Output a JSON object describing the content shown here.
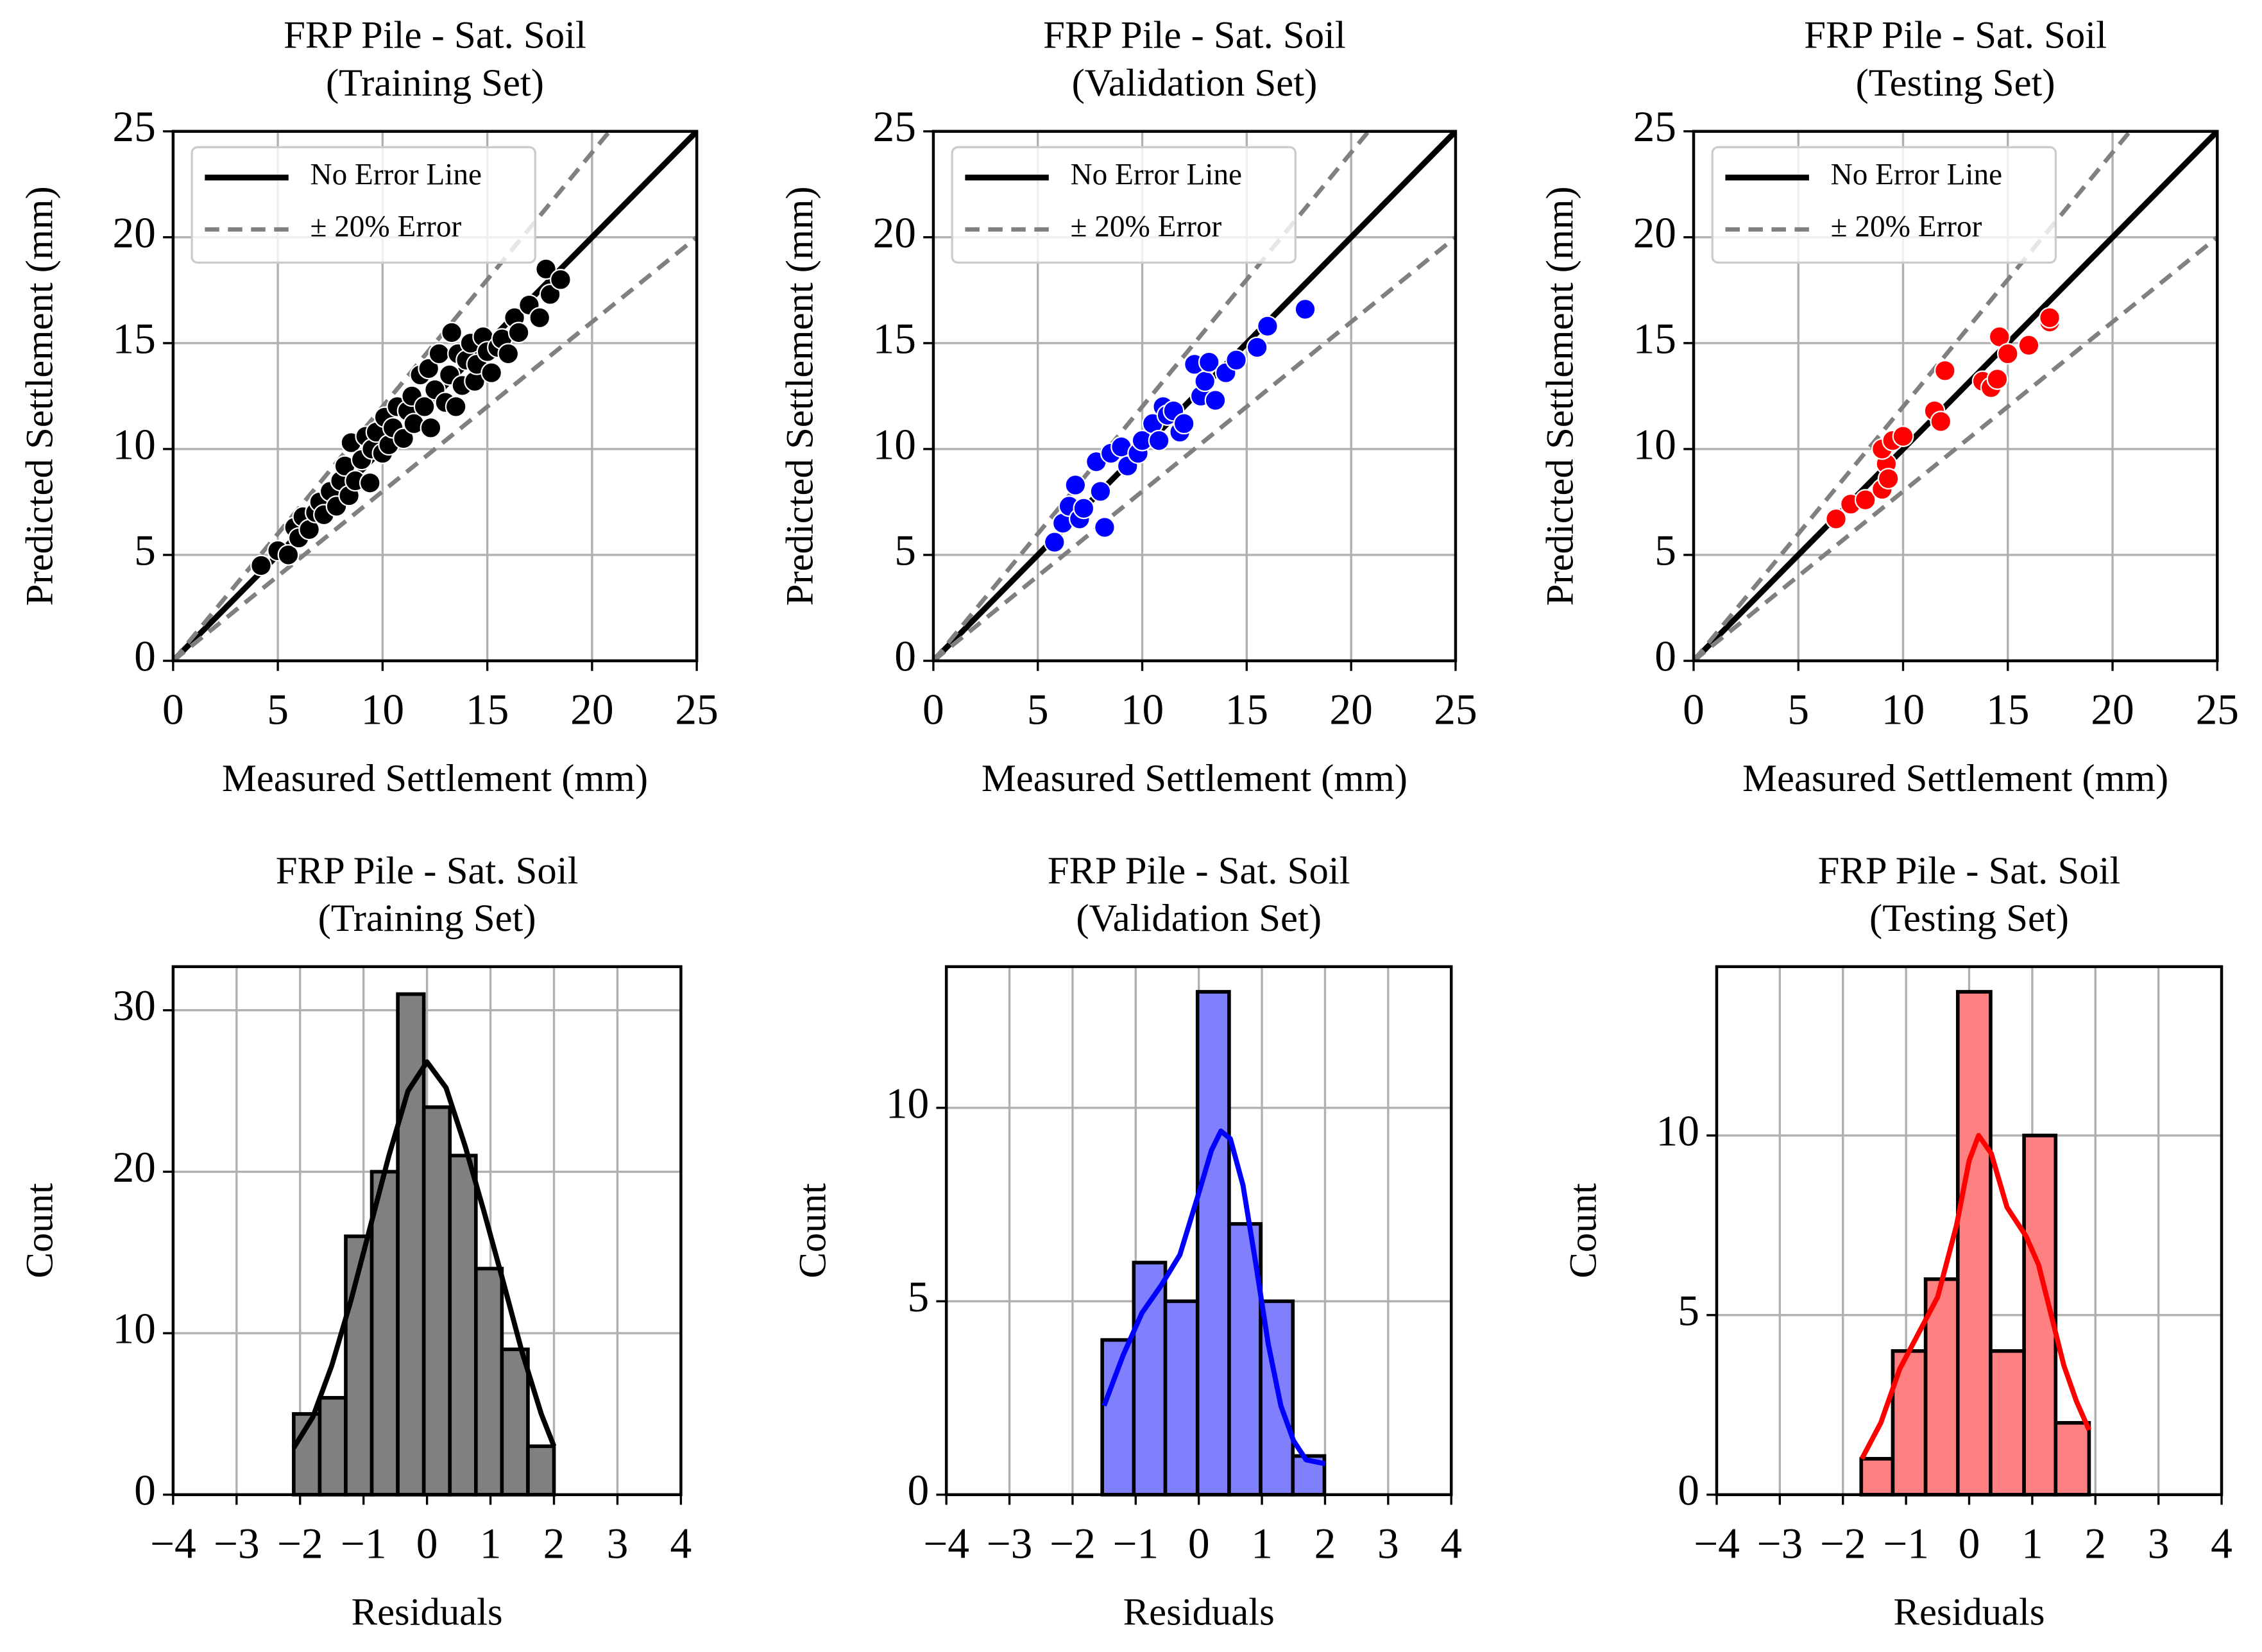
{
  "chart_data": [
    {
      "type": "scatter",
      "title": "FRP Pile - Sat. Soil",
      "subtitle": "(Training Set)",
      "xlabel": "Measured Settlement (mm)",
      "ylabel": "Predicted Settlement (mm)",
      "xlim": [
        0,
        25
      ],
      "ylim": [
        0,
        25
      ],
      "xticks": [
        0,
        5,
        10,
        15,
        20,
        25
      ],
      "yticks": [
        0,
        5,
        10,
        15,
        20,
        25
      ],
      "grid": true,
      "legend": "upper left",
      "color": "#000000",
      "x": [
        4.2,
        5.0,
        5.5,
        5.8,
        6.0,
        6.2,
        6.5,
        6.8,
        7.0,
        7.2,
        7.5,
        7.8,
        8.0,
        8.2,
        8.4,
        8.5,
        8.7,
        9.0,
        9.2,
        9.4,
        9.5,
        9.7,
        10.0,
        10.1,
        10.3,
        10.5,
        10.7,
        11.0,
        11.2,
        11.4,
        11.5,
        11.8,
        12.0,
        12.2,
        12.3,
        12.5,
        12.7,
        13.0,
        13.2,
        13.3,
        13.5,
        13.6,
        13.8,
        14.0,
        14.2,
        14.4,
        14.5,
        14.8,
        15.0,
        15.2,
        15.5,
        15.7,
        16.0,
        16.3,
        16.5,
        17.0,
        17.5,
        17.8,
        18.0,
        18.5
      ],
      "y": [
        4.5,
        5.2,
        5.0,
        6.3,
        5.8,
        6.8,
        6.2,
        7.0,
        7.5,
        6.9,
        8.0,
        7.3,
        8.5,
        9.2,
        7.8,
        10.3,
        8.5,
        9.5,
        10.6,
        8.4,
        10.0,
        10.8,
        9.8,
        11.5,
        10.2,
        11.0,
        12.0,
        10.5,
        11.8,
        12.5,
        11.2,
        13.5,
        12.0,
        13.8,
        11.0,
        12.8,
        14.5,
        12.2,
        13.5,
        15.5,
        12.0,
        14.5,
        13.0,
        14.2,
        15.0,
        13.2,
        14.0,
        15.3,
        14.6,
        13.6,
        14.8,
        15.2,
        14.5,
        16.2,
        15.5,
        16.8,
        16.2,
        18.5,
        17.3,
        18.0
      ],
      "reference_lines": [
        {
          "name": "No Error Line",
          "color": "#000000",
          "dashed": false,
          "slopes": [
            1
          ]
        },
        {
          "name": "± 20% Error",
          "color": "#808080",
          "dashed": true,
          "slopes": [
            1.2,
            0.8
          ]
        }
      ]
    },
    {
      "type": "scatter",
      "title": "FRP Pile - Sat. Soil",
      "subtitle": "(Validation Set)",
      "xlabel": "Measured Settlement (mm)",
      "ylabel": "Predicted Settlement (mm)",
      "xlim": [
        0,
        25
      ],
      "ylim": [
        0,
        25
      ],
      "xticks": [
        0,
        5,
        10,
        15,
        20,
        25
      ],
      "yticks": [
        0,
        5,
        10,
        15,
        20,
        25
      ],
      "grid": true,
      "legend": "upper left",
      "color": "#0000ff",
      "x": [
        5.8,
        6.2,
        6.5,
        6.8,
        7.0,
        7.2,
        7.8,
        8.0,
        8.2,
        8.5,
        9.0,
        9.3,
        9.8,
        10.0,
        10.5,
        10.8,
        11.0,
        11.2,
        11.5,
        11.8,
        12.0,
        12.5,
        12.8,
        13.0,
        13.2,
        13.5,
        14.0,
        14.5,
        15.5,
        16.0,
        17.8
      ],
      "y": [
        5.6,
        6.5,
        7.3,
        8.3,
        6.7,
        7.2,
        9.4,
        8.0,
        6.3,
        9.8,
        10.1,
        9.2,
        9.8,
        10.4,
        11.2,
        10.4,
        12.0,
        11.6,
        11.8,
        10.8,
        11.2,
        14.0,
        12.5,
        13.2,
        14.1,
        12.3,
        13.6,
        14.2,
        14.8,
        15.8,
        16.6
      ],
      "reference_lines": [
        {
          "name": "No Error Line",
          "color": "#000000",
          "dashed": false,
          "slopes": [
            1
          ]
        },
        {
          "name": "± 20% Error",
          "color": "#808080",
          "dashed": true,
          "slopes": [
            1.2,
            0.8
          ]
        }
      ]
    },
    {
      "type": "scatter",
      "title": "FRP Pile - Sat. Soil",
      "subtitle": "(Testing Set)",
      "xlabel": "Measured Settlement (mm)",
      "ylabel": "Predicted Settlement (mm)",
      "xlim": [
        0,
        25
      ],
      "ylim": [
        0,
        25
      ],
      "xticks": [
        0,
        5,
        10,
        15,
        20,
        25
      ],
      "yticks": [
        0,
        5,
        10,
        15,
        20,
        25
      ],
      "grid": true,
      "legend": "upper left",
      "color": "#ff0000",
      "x": [
        6.8,
        7.5,
        8.2,
        9.0,
        9.2,
        9.0,
        9.5,
        10.0,
        11.5,
        11.8,
        12.0,
        13.8,
        14.2,
        14.5,
        14.6,
        15.0,
        16.0,
        17.0,
        17.0,
        9.3
      ],
      "y": [
        6.7,
        7.4,
        7.6,
        8.1,
        9.3,
        10.0,
        10.4,
        10.6,
        11.8,
        11.3,
        13.7,
        13.2,
        12.9,
        13.3,
        15.3,
        14.5,
        14.9,
        16.0,
        16.2,
        8.6
      ],
      "reference_lines": [
        {
          "name": "No Error Line",
          "color": "#000000",
          "dashed": false,
          "slopes": [
            1
          ]
        },
        {
          "name": "± 20% Error",
          "color": "#808080",
          "dashed": true,
          "slopes": [
            1.2,
            0.8
          ]
        }
      ]
    },
    {
      "type": "histogram",
      "title": "FRP Pile - Sat. Soil",
      "subtitle": "(Training Set)",
      "xlabel": "Residuals",
      "ylabel": "Count",
      "xlim": [
        -4,
        4
      ],
      "ylim": [
        0,
        32.7
      ],
      "grid": true,
      "xticks": [
        {
          "value": -4,
          "label": "−4"
        },
        {
          "value": -3,
          "label": "−3"
        },
        {
          "value": -2,
          "label": "−2"
        },
        {
          "value": -1,
          "label": "−1"
        },
        0,
        1,
        2,
        3,
        4
      ],
      "yticks": [
        0,
        10,
        20,
        30
      ],
      "color": "#808080",
      "bins": [
        -2.1,
        -1.69,
        -1.28,
        -0.87,
        -0.46,
        -0.05,
        0.36,
        0.77,
        1.18,
        1.59,
        2.0
      ],
      "counts": [
        5,
        6,
        16,
        20,
        31,
        24,
        21,
        14,
        9,
        3
      ],
      "kde_color": "#000000",
      "kde_x": [
        -2.1,
        -1.8,
        -1.5,
        -1.2,
        -0.9,
        -0.6,
        -0.3,
        0,
        0.3,
        0.6,
        0.9,
        1.2,
        1.5,
        1.8,
        2.0
      ],
      "kde_y": [
        2.9,
        4.8,
        8.0,
        12.0,
        16.5,
        21.0,
        25.0,
        26.8,
        25.2,
        21.6,
        17.5,
        13.2,
        8.8,
        5.0,
        3.0
      ]
    },
    {
      "type": "histogram",
      "title": "FRP Pile - Sat. Soil",
      "subtitle": "(Validation Set)",
      "xlabel": "Residuals",
      "ylabel": "Count",
      "xlim": [
        -4,
        4
      ],
      "ylim": [
        0,
        13.65
      ],
      "grid": true,
      "xticks": [
        {
          "value": -4,
          "label": "−4"
        },
        {
          "value": -3,
          "label": "−3"
        },
        {
          "value": -2,
          "label": "−2"
        },
        {
          "value": -1,
          "label": "−1"
        },
        0,
        1,
        2,
        3,
        4
      ],
      "yticks": [
        0,
        5,
        10
      ],
      "color": "#8080ff",
      "bins": [
        -1.53,
        -1.03,
        -0.53,
        -0.02,
        0.48,
        0.98,
        1.49,
        1.99
      ],
      "counts": [
        4,
        6,
        5,
        13,
        7,
        5,
        1
      ],
      "kde_color": "#0000ff",
      "kde_x": [
        -1.5,
        -1.2,
        -0.9,
        -0.6,
        -0.3,
        0,
        0.2,
        0.35,
        0.5,
        0.7,
        0.9,
        1.1,
        1.3,
        1.5,
        1.7,
        2.0
      ],
      "kde_y": [
        2.3,
        3.6,
        4.7,
        5.4,
        6.2,
        7.8,
        8.9,
        9.4,
        9.2,
        8.0,
        6.0,
        3.9,
        2.3,
        1.4,
        0.9,
        0.8
      ]
    },
    {
      "type": "histogram",
      "title": "FRP Pile - Sat. Soil",
      "subtitle": "(Testing Set)",
      "xlabel": "Residuals",
      "ylabel": "Count",
      "xlim": [
        -4,
        4
      ],
      "ylim": [
        0,
        14.7
      ],
      "grid": true,
      "xticks": [
        {
          "value": -4,
          "label": "−4"
        },
        {
          "value": -3,
          "label": "−3"
        },
        {
          "value": -2,
          "label": "−2"
        },
        {
          "value": -1,
          "label": "−1"
        },
        0,
        1,
        2,
        3,
        4
      ],
      "yticks": [
        0,
        5,
        10
      ],
      "color": "#ff8080",
      "bins": [
        -1.71,
        -1.21,
        -0.69,
        -0.18,
        0.34,
        0.87,
        1.37,
        1.9
      ],
      "counts": [
        1,
        4,
        6,
        14,
        4,
        10,
        2
      ],
      "kde_color": "#ff0000",
      "kde_x": [
        -1.7,
        -1.4,
        -1.1,
        -0.8,
        -0.5,
        -0.2,
        0,
        0.15,
        0.35,
        0.6,
        0.9,
        1.1,
        1.3,
        1.5,
        1.7,
        1.9
      ],
      "kde_y": [
        1.0,
        2.0,
        3.5,
        4.5,
        5.5,
        7.5,
        9.3,
        10.0,
        9.5,
        8.0,
        7.2,
        6.4,
        5.0,
        3.6,
        2.6,
        1.8
      ]
    }
  ]
}
